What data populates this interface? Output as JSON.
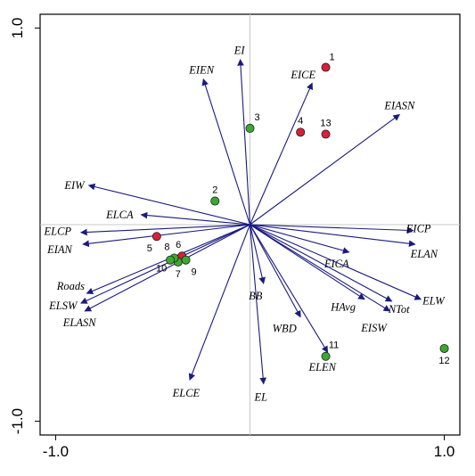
{
  "chart_data": {
    "type": "scatter",
    "subtype": "ordination-biplot",
    "title": "",
    "xlabel": "",
    "ylabel": "",
    "xlim": [
      -1.08,
      1.08
    ],
    "ylim": [
      -1.07,
      1.07
    ],
    "x_ticks": [
      {
        "value": -1.0,
        "label": "-1.0"
      },
      {
        "value": 1.0,
        "label": "1.0"
      }
    ],
    "y_ticks": [
      {
        "value": 1.0,
        "label": "1.0"
      },
      {
        "value": -1.0,
        "label": "-1.0"
      }
    ],
    "grid": false,
    "origin_lines": true,
    "colors": {
      "vector": "#1a1a80",
      "axis_zero": "#c8c8c8",
      "group_red": "#d8203a",
      "group_green": "#3aaa2e",
      "point_edge": "#202020"
    },
    "vectors": [
      {
        "name": "EIEN",
        "x": -0.24,
        "y": 0.74
      },
      {
        "name": "EI",
        "x": -0.05,
        "y": 0.84
      },
      {
        "name": "EICE",
        "x": 0.32,
        "y": 0.72
      },
      {
        "name": "EIASN",
        "x": 0.77,
        "y": 0.56
      },
      {
        "name": "EIW",
        "x": -0.83,
        "y": 0.2
      },
      {
        "name": "ELCA",
        "x": -0.56,
        "y": 0.05
      },
      {
        "name": "ELCP",
        "x": -0.87,
        "y": -0.04
      },
      {
        "name": "EIAN",
        "x": -0.86,
        "y": -0.1
      },
      {
        "name": "Roads",
        "x": -0.84,
        "y": -0.35
      },
      {
        "name": "ELSW",
        "x": -0.87,
        "y": -0.4
      },
      {
        "name": "ELASN",
        "x": -0.85,
        "y": -0.44
      },
      {
        "name": "BB",
        "x": 0.07,
        "y": -0.3
      },
      {
        "name": "WBD",
        "x": 0.26,
        "y": -0.47
      },
      {
        "name": "EL",
        "x": 0.07,
        "y": -0.81
      },
      {
        "name": "ELCE",
        "x": -0.31,
        "y": -0.79
      },
      {
        "name": "ELEN",
        "x": 0.4,
        "y": -0.65
      },
      {
        "name": "EICA",
        "x": 0.51,
        "y": -0.14
      },
      {
        "name": "EICP",
        "x": 0.84,
        "y": -0.03
      },
      {
        "name": "ELAN",
        "x": 0.85,
        "y": -0.1
      },
      {
        "name": "ELW",
        "x": 0.88,
        "y": -0.38
      },
      {
        "name": "NTot",
        "x": 0.73,
        "y": -0.39
      },
      {
        "name": "HAvg",
        "x": 0.59,
        "y": -0.38
      },
      {
        "name": "EISW",
        "x": 0.72,
        "y": -0.44
      }
    ],
    "points": [
      {
        "label": "1",
        "x": 0.39,
        "y": 0.8,
        "group": "red"
      },
      {
        "label": "2",
        "x": -0.18,
        "y": 0.12,
        "group": "green"
      },
      {
        "label": "3",
        "x": 0.0,
        "y": 0.49,
        "group": "green"
      },
      {
        "label": "4",
        "x": 0.26,
        "y": 0.47,
        "group": "red"
      },
      {
        "label": "5",
        "x": -0.48,
        "y": -0.06,
        "group": "red"
      },
      {
        "label": "6",
        "x": -0.35,
        "y": -0.16,
        "group": "red"
      },
      {
        "label": "7",
        "x": -0.37,
        "y": -0.19,
        "group": "green"
      },
      {
        "label": "8",
        "x": -0.39,
        "y": -0.17,
        "group": "green"
      },
      {
        "label": "9",
        "x": -0.33,
        "y": -0.18,
        "group": "green"
      },
      {
        "label": "10",
        "x": -0.41,
        "y": -0.18,
        "group": "green"
      },
      {
        "label": "11",
        "x": 0.39,
        "y": -0.67,
        "group": "green"
      },
      {
        "label": "12",
        "x": 1.0,
        "y": -0.63,
        "group": "green"
      },
      {
        "label": "13",
        "x": 0.39,
        "y": 0.46,
        "group": "red"
      }
    ]
  }
}
